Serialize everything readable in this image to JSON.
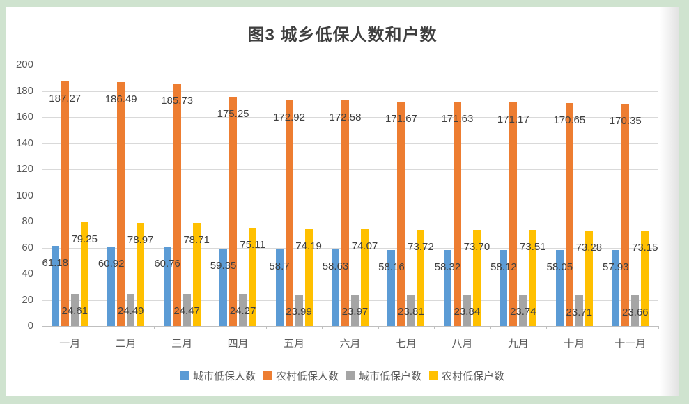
{
  "page": {
    "background_color": "#cfe3cf",
    "panel_color": "#ffffff"
  },
  "chart_data": {
    "type": "bar",
    "title": "图3  城乡低保人数和户数",
    "categories": [
      "一月",
      "二月",
      "三月",
      "四月",
      "五月",
      "六月",
      "七月",
      "八月",
      "九月",
      "十月",
      "十一月"
    ],
    "series": [
      {
        "name": "城市低保人数",
        "color": "#5B9BD5",
        "values": [
          "61.18",
          "60.92",
          "60.76",
          "59.35",
          "58.7",
          "58.63",
          "58.16",
          "58.32",
          "58.12",
          "58.05",
          "57.93"
        ]
      },
      {
        "name": "农村低保人数",
        "color": "#ED7D31",
        "values": [
          "187.27",
          "186.49",
          "185.73",
          "175.25",
          "172.92",
          "172.58",
          "171.67",
          "171.63",
          "171.17",
          "170.65",
          "170.35"
        ]
      },
      {
        "name": "城市低保户数",
        "color": "#A5A5A5",
        "values": [
          "24.61",
          "24.49",
          "24.47",
          "24.27",
          "23.99",
          "23.97",
          "23.81",
          "23.84",
          "23.74",
          "23.71",
          "23.66"
        ]
      },
      {
        "name": "农村低保户数",
        "color": "#FFC000",
        "values": [
          "79.25",
          "78.97",
          "78.71",
          "75.11",
          "74.19",
          "74.07",
          "73.72",
          "73.70",
          "73.51",
          "73.28",
          "73.15"
        ]
      }
    ],
    "y_axis": {
      "min": 0,
      "max": 200,
      "step": 20,
      "ticks": [
        "200",
        "180",
        "160",
        "140",
        "120",
        "100",
        "80",
        "60",
        "40",
        "20",
        "0"
      ]
    },
    "xlabel": "",
    "ylabel": "",
    "grid": true,
    "legend_position": "bottom",
    "data_labels": "inside-end",
    "colors": {
      "gridline": "#d9d9d9",
      "axis_line": "#bfbfbf",
      "axis_text": "#595959",
      "data_label_text": "#404040",
      "title_text": "#3f3f3f"
    }
  }
}
